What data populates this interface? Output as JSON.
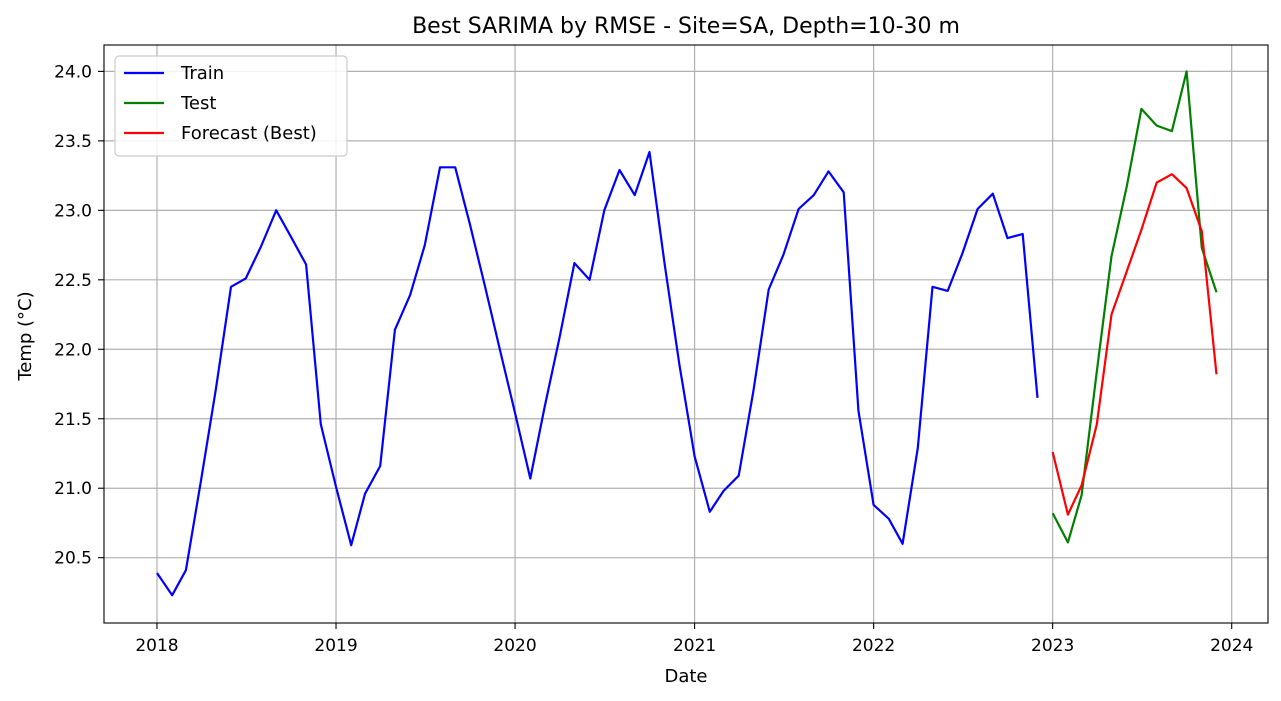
{
  "chart_data": {
    "type": "line",
    "title": "Best SARIMA by RMSE - Site=SA, Depth=10-30 m",
    "xlabel": "Date",
    "ylabel": "Temp (°C)",
    "xlim": [
      "2017-09-15",
      "2024-03-15"
    ],
    "ylim": [
      20.03,
      24.19
    ],
    "x_ticks": [
      "2018",
      "2019",
      "2020",
      "2021",
      "2022",
      "2023",
      "2024"
    ],
    "y_ticks": [
      "20.5",
      "21.0",
      "21.5",
      "22.0",
      "22.5",
      "23.0",
      "23.5",
      "24.0"
    ],
    "grid": true,
    "legend_position": "top-left",
    "series": [
      {
        "name": "Train",
        "color": "#0000ff",
        "points": [
          [
            "2018-01-01",
            20.39
          ],
          [
            "2018-02-01",
            20.23
          ],
          [
            "2018-03-01",
            20.41
          ],
          [
            "2018-04-01",
            21.06
          ],
          [
            "2018-05-01",
            21.71
          ],
          [
            "2018-06-01",
            22.45
          ],
          [
            "2018-07-01",
            22.51
          ],
          [
            "2018-08-01",
            22.74
          ],
          [
            "2018-09-01",
            23.0
          ],
          [
            "2018-10-01",
            22.81
          ],
          [
            "2018-11-01",
            22.61
          ],
          [
            "2018-12-01",
            21.46
          ],
          [
            "2019-01-01",
            21.01
          ],
          [
            "2019-02-01",
            20.59
          ],
          [
            "2019-03-01",
            20.96
          ],
          [
            "2019-04-01",
            21.16
          ],
          [
            "2019-05-01",
            22.14
          ],
          [
            "2019-06-01",
            22.39
          ],
          [
            "2019-07-01",
            22.75
          ],
          [
            "2019-08-01",
            23.31
          ],
          [
            "2019-09-01",
            23.31
          ],
          [
            "2019-10-01",
            22.9
          ],
          [
            "2019-11-01",
            22.45
          ],
          [
            "2019-12-01",
            22.0
          ],
          [
            "2020-01-01",
            21.54
          ],
          [
            "2020-02-01",
            21.07
          ],
          [
            "2020-03-01",
            21.58
          ],
          [
            "2020-04-01",
            22.09
          ],
          [
            "2020-05-01",
            22.62
          ],
          [
            "2020-06-01",
            22.5
          ],
          [
            "2020-07-01",
            23.0
          ],
          [
            "2020-08-01",
            23.29
          ],
          [
            "2020-09-01",
            23.11
          ],
          [
            "2020-10-01",
            23.42
          ],
          [
            "2020-11-01",
            22.61
          ],
          [
            "2020-12-01",
            21.89
          ],
          [
            "2021-01-01",
            21.23
          ],
          [
            "2021-02-01",
            20.83
          ],
          [
            "2021-03-01",
            20.98
          ],
          [
            "2021-04-01",
            21.09
          ],
          [
            "2021-05-01",
            21.7
          ],
          [
            "2021-06-01",
            22.43
          ],
          [
            "2021-07-01",
            22.68
          ],
          [
            "2021-08-01",
            23.01
          ],
          [
            "2021-09-01",
            23.11
          ],
          [
            "2021-10-01",
            23.28
          ],
          [
            "2021-11-01",
            23.13
          ],
          [
            "2021-12-01",
            21.56
          ],
          [
            "2022-01-01",
            20.88
          ],
          [
            "2022-02-01",
            20.78
          ],
          [
            "2022-03-01",
            20.6
          ],
          [
            "2022-04-01",
            21.29
          ],
          [
            "2022-05-01",
            22.45
          ],
          [
            "2022-06-01",
            22.42
          ],
          [
            "2022-07-01",
            22.69
          ],
          [
            "2022-08-01",
            23.01
          ],
          [
            "2022-09-01",
            23.12
          ],
          [
            "2022-10-01",
            22.8
          ],
          [
            "2022-11-01",
            22.83
          ],
          [
            "2022-12-01",
            21.65
          ]
        ]
      },
      {
        "name": "Test",
        "color": "#008000",
        "points": [
          [
            "2023-01-01",
            20.82
          ],
          [
            "2023-02-01",
            20.61
          ],
          [
            "2023-03-01",
            20.95
          ],
          [
            "2023-04-01",
            21.84
          ],
          [
            "2023-05-01",
            22.67
          ],
          [
            "2023-06-01",
            23.17
          ],
          [
            "2023-07-01",
            23.73
          ],
          [
            "2023-08-01",
            23.61
          ],
          [
            "2023-09-01",
            23.57
          ],
          [
            "2023-10-01",
            24.0
          ],
          [
            "2023-11-01",
            22.73
          ],
          [
            "2023-12-01",
            22.41
          ]
        ]
      },
      {
        "name": "Forecast (Best)",
        "color": "#ff0000",
        "points": [
          [
            "2023-01-01",
            21.26
          ],
          [
            "2023-02-01",
            20.81
          ],
          [
            "2023-03-01",
            21.02
          ],
          [
            "2023-04-01",
            21.46
          ],
          [
            "2023-05-01",
            22.25
          ],
          [
            "2023-06-01",
            22.56
          ],
          [
            "2023-07-01",
            22.86
          ],
          [
            "2023-08-01",
            23.2
          ],
          [
            "2023-09-01",
            23.26
          ],
          [
            "2023-10-01",
            23.16
          ],
          [
            "2023-11-01",
            22.85
          ],
          [
            "2023-12-01",
            21.82
          ]
        ]
      }
    ]
  }
}
